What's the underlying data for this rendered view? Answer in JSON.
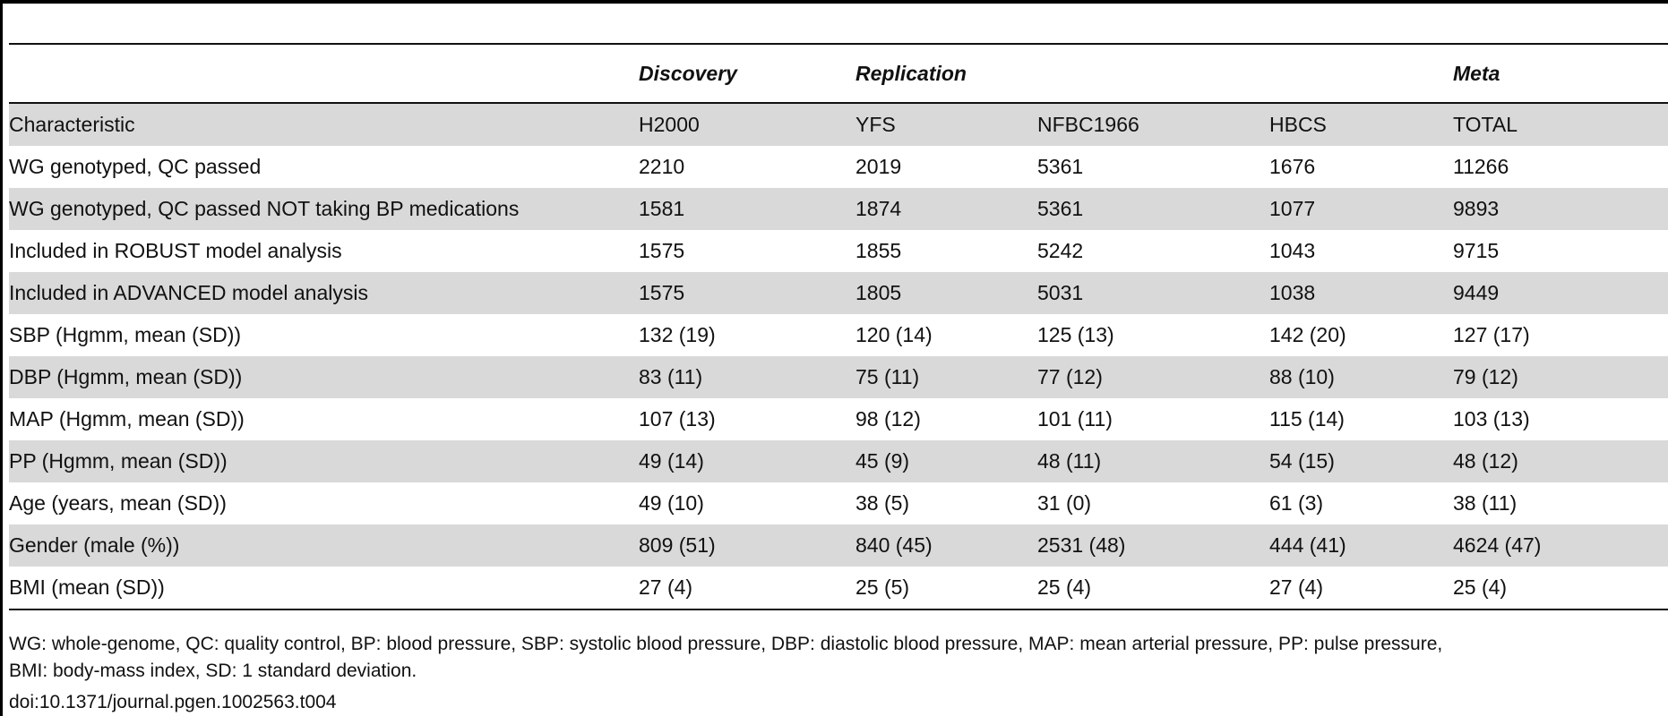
{
  "table": {
    "groups": {
      "discovery": "Discovery",
      "replication": "Replication",
      "meta": "Meta"
    },
    "columns": [
      "Characteristic",
      "H2000",
      "YFS",
      "NFBC1966",
      "HBCS",
      "TOTAL"
    ],
    "rows": [
      [
        "WG genotyped, QC passed",
        "2210",
        "2019",
        "5361",
        "1676",
        "11266"
      ],
      [
        "WG genotyped, QC passed NOT taking BP medications",
        "1581",
        "1874",
        "5361",
        "1077",
        "9893"
      ],
      [
        "Included in ROBUST model analysis",
        "1575",
        "1855",
        "5242",
        "1043",
        "9715"
      ],
      [
        "Included in ADVANCED model analysis",
        "1575",
        "1805",
        "5031",
        "1038",
        "9449"
      ],
      [
        "SBP (Hgmm, mean (SD))",
        "132 (19)",
        "120 (14)",
        "125 (13)",
        "142 (20)",
        "127 (17)"
      ],
      [
        "DBP (Hgmm, mean (SD))",
        "83 (11)",
        "75 (11)",
        "77 (12)",
        "88 (10)",
        "79 (12)"
      ],
      [
        "MAP (Hgmm, mean (SD))",
        "107 (13)",
        "98 (12)",
        "101 (11)",
        "115 (14)",
        "103 (13)"
      ],
      [
        "PP (Hgmm, mean (SD))",
        "49 (14)",
        "45 (9)",
        "48 (11)",
        "54 (15)",
        "48 (12)"
      ],
      [
        "Age (years, mean (SD))",
        "49 (10)",
        "38 (5)",
        "31 (0)",
        "61 (3)",
        "38 (11)"
      ],
      [
        "Gender (male (%))",
        "809 (51)",
        "840 (45)",
        "2531 (48)",
        "444 (41)",
        "4624 (47)"
      ],
      [
        "BMI (mean (SD))",
        "27 (4)",
        "25 (5)",
        "25 (4)",
        "27 (4)",
        "25 (4)"
      ]
    ]
  },
  "footnote": {
    "line1": "WG: whole-genome, QC: quality control, BP: blood pressure, SBP: systolic blood pressure, DBP: diastolic blood pressure, MAP: mean arterial pressure, PP: pulse pressure,",
    "line2": "BMI: body-mass index, SD: 1 standard deviation.",
    "doi": "doi:10.1371/journal.pgen.1002563.t004"
  }
}
